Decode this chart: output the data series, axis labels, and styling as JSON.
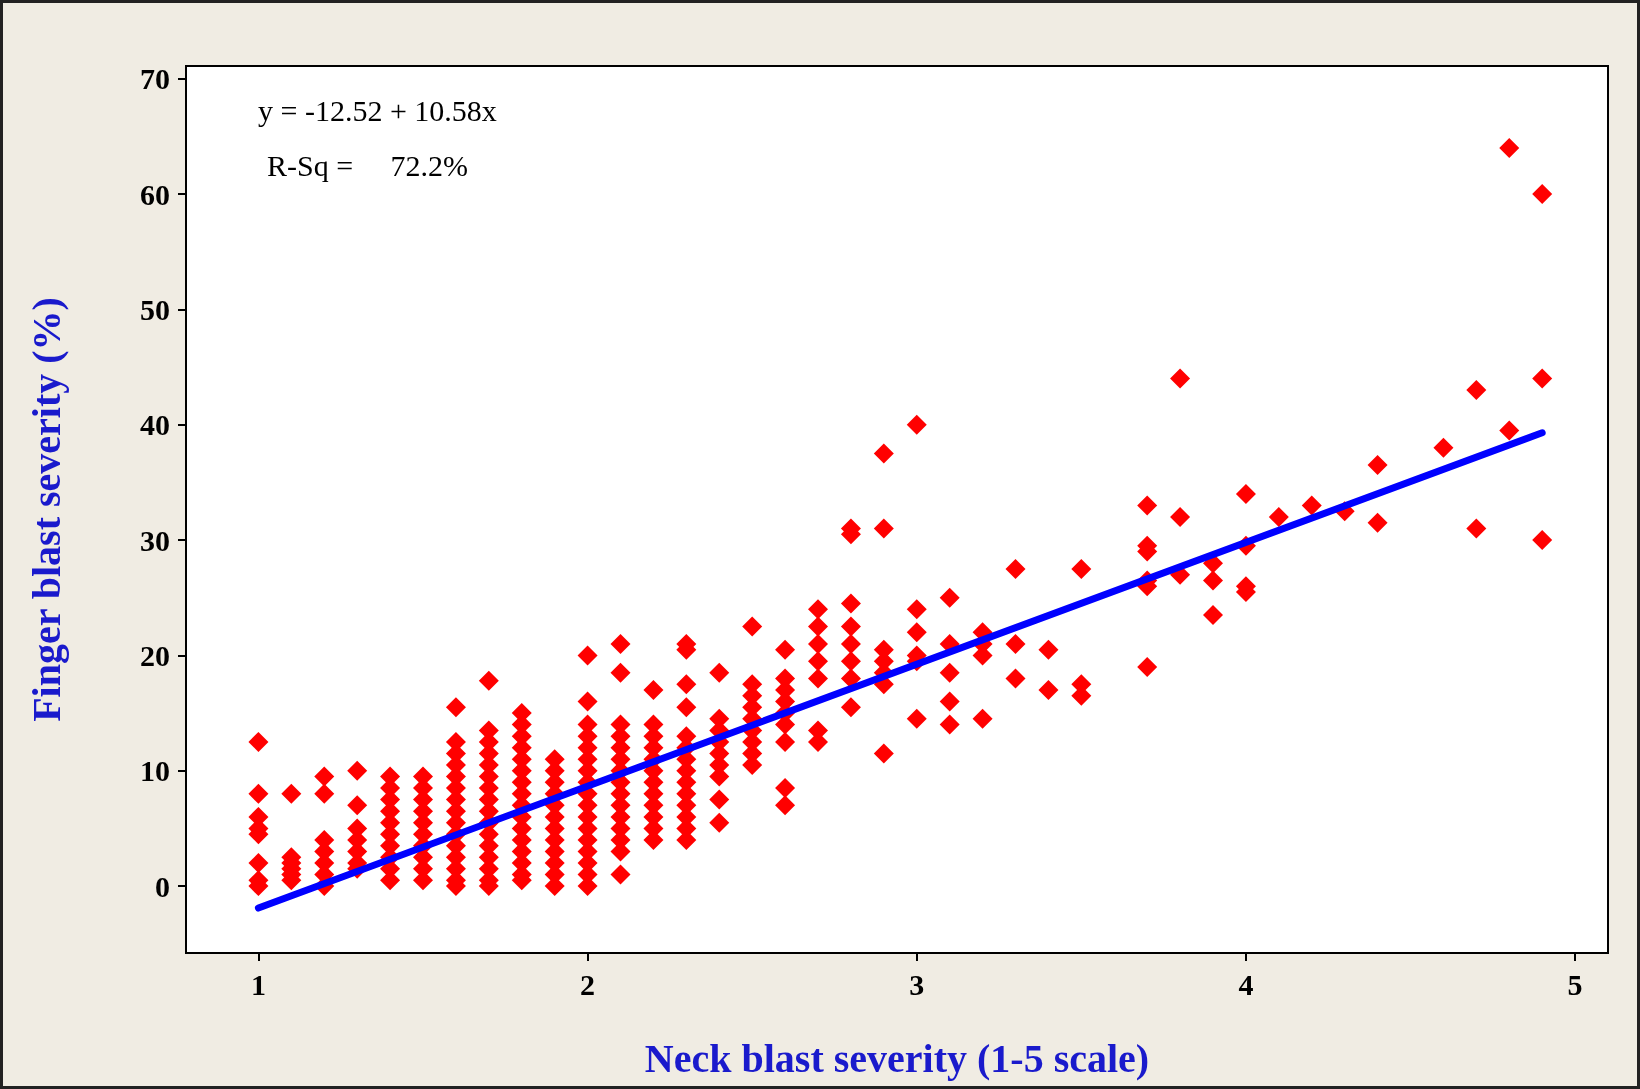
{
  "chart_data": {
    "type": "scatter",
    "xlabel": "Neck blast severity (1-5 scale)",
    "ylabel": "Finger blast severity (%)",
    "annotations": [
      "y = -12.52 + 10.58x",
      "R-Sq =     72.2%"
    ],
    "xlim": [
      0.78,
      5.1
    ],
    "xticks": [
      1,
      2,
      3,
      4,
      5
    ],
    "ylim": [
      -5.8,
      71.1
    ],
    "yticks": [
      0,
      10,
      20,
      30,
      40,
      50,
      60,
      70
    ],
    "marker": "diamond",
    "grid": false,
    "series": [
      {
        "color": "#ff0000",
        "x": [
          1,
          1,
          1,
          1,
          1,
          1,
          1,
          1,
          1.1,
          1.1,
          1.1,
          1.1,
          1.1,
          1.1,
          1.2,
          1.2,
          1.2,
          1.2,
          1.2,
          1.2,
          1.2,
          1.3,
          1.3,
          1.3,
          1.3,
          1.3,
          1.3,
          1.3,
          1.4,
          1.4,
          1.4,
          1.4,
          1.4,
          1.4,
          1.4,
          1.4,
          1.4,
          1.4,
          1.5,
          1.5,
          1.5,
          1.5,
          1.5,
          1.5,
          1.5,
          1.5,
          1.5,
          1.5,
          1.6,
          1.6,
          1.6,
          1.6,
          1.6,
          1.6,
          1.6,
          1.6,
          1.6,
          1.6,
          1.6,
          1.6,
          1.6,
          1.6,
          1.6,
          1.7,
          1.7,
          1.7,
          1.7,
          1.7,
          1.7,
          1.7,
          1.7,
          1.7,
          1.7,
          1.7,
          1.7,
          1.7,
          1.7,
          1.7,
          1.7,
          1.8,
          1.8,
          1.8,
          1.8,
          1.8,
          1.8,
          1.8,
          1.8,
          1.8,
          1.8,
          1.8,
          1.8,
          1.8,
          1.8,
          1.8,
          1.8,
          1.9,
          1.9,
          1.9,
          1.9,
          1.9,
          1.9,
          1.9,
          1.9,
          1.9,
          1.9,
          1.9,
          1.9,
          2,
          2,
          2,
          2,
          2,
          2,
          2,
          2,
          2,
          2,
          2,
          2,
          2,
          2,
          2,
          2,
          2,
          2.1,
          2.1,
          2.1,
          2.1,
          2.1,
          2.1,
          2.1,
          2.1,
          2.1,
          2.1,
          2.1,
          2.1,
          2.1,
          2.1,
          2.1,
          2.2,
          2.2,
          2.2,
          2.2,
          2.2,
          2.2,
          2.2,
          2.2,
          2.2,
          2.2,
          2.2,
          2.2,
          2.3,
          2.3,
          2.3,
          2.3,
          2.3,
          2.3,
          2.3,
          2.3,
          2.3,
          2.3,
          2.3,
          2.3,
          2.3,
          2.3,
          2.4,
          2.4,
          2.4,
          2.4,
          2.4,
          2.4,
          2.4,
          2.4,
          2.4,
          2.5,
          2.5,
          2.5,
          2.5,
          2.5,
          2.5,
          2.5,
          2.5,
          2.5,
          2.6,
          2.6,
          2.6,
          2.6,
          2.6,
          2.6,
          2.6,
          2.6,
          2.6,
          2.7,
          2.7,
          2.7,
          2.7,
          2.7,
          2.7,
          2.7,
          2.8,
          2.8,
          2.8,
          2.8,
          2.8,
          2.8,
          2.8,
          2.8,
          2.9,
          2.9,
          2.9,
          2.9,
          2.9,
          2.9,
          2.9,
          3,
          3,
          3,
          3,
          3,
          3,
          3.1,
          3.1,
          3.1,
          3.1,
          3.1,
          3.2,
          3.2,
          3.2,
          3.2,
          3.3,
          3.3,
          3.3,
          3.4,
          3.4,
          3.5,
          3.5,
          3.5,
          3.7,
          3.7,
          3.7,
          3.7,
          3.7,
          3.7,
          3.8,
          3.8,
          3.8,
          3.9,
          3.9,
          3.9,
          4,
          4,
          4,
          4,
          4.1,
          4.2,
          4.3,
          4.4,
          4.4,
          4.6,
          4.7,
          4.7,
          4.8,
          4.8,
          4.9,
          4.9,
          4.9
        ],
        "values": [
          12.5,
          8,
          6,
          5,
          4.5,
          2,
          0.5,
          0,
          8,
          2.5,
          2,
          1.5,
          1,
          0.5,
          9.5,
          8,
          4,
          3,
          2,
          1,
          0,
          10,
          7,
          5,
          4,
          3,
          2,
          1.5,
          9.5,
          8.5,
          7.5,
          6.5,
          5.5,
          4.5,
          3.5,
          2.5,
          1.5,
          0.5,
          9.5,
          8.5,
          7.5,
          6.5,
          5.5,
          4.5,
          3.5,
          2.5,
          1.5,
          0.5,
          15.5,
          12.5,
          11.5,
          10.5,
          9.5,
          8.5,
          7.5,
          6.5,
          5.5,
          4.5,
          3.5,
          2.5,
          1.5,
          0.5,
          0,
          17.8,
          13.5,
          12.5,
          11.5,
          10.5,
          9.5,
          8.5,
          7.5,
          6.5,
          5.5,
          4.5,
          3.5,
          2.5,
          1.5,
          0.5,
          0,
          15,
          14,
          13,
          12,
          11,
          10,
          9,
          8,
          7,
          6,
          5,
          4,
          3,
          2,
          1,
          0.5,
          11,
          10,
          9,
          8,
          7,
          6,
          5,
          4,
          3,
          2,
          1,
          0,
          20,
          16,
          14,
          13,
          12,
          11,
          10,
          9,
          8,
          7,
          6,
          5,
          4,
          3,
          2,
          1,
          0,
          21,
          18.5,
          14,
          13,
          12,
          11,
          10,
          9,
          8,
          7,
          6,
          5,
          4,
          3,
          1,
          17,
          14,
          13,
          12,
          11,
          10,
          9,
          8,
          7,
          6,
          5,
          4,
          21,
          20.5,
          17.5,
          15.5,
          13,
          12,
          11,
          10,
          9,
          8,
          7,
          6,
          5,
          4,
          18.5,
          14.5,
          13.5,
          12.5,
          11.5,
          10.5,
          9.5,
          7.5,
          5.5,
          22.5,
          17.5,
          16.5,
          15.5,
          14.5,
          13.5,
          12.5,
          11.5,
          10.5,
          20.5,
          18,
          17,
          16,
          15,
          14,
          12.5,
          8.5,
          7,
          24,
          22.5,
          21,
          19.5,
          18,
          13.5,
          12.5,
          31,
          30.5,
          24.5,
          22.5,
          21,
          19.5,
          18,
          15.5,
          37.5,
          31,
          20.5,
          19.5,
          18.5,
          17.5,
          11.5,
          40,
          24,
          22,
          20,
          19.5,
          14.5,
          25,
          21,
          18.5,
          16,
          14,
          22,
          21,
          20,
          14.5,
          27.5,
          21,
          18,
          20.5,
          17,
          27.5,
          17.5,
          16.5,
          33,
          29.5,
          29,
          26.5,
          26,
          19,
          44,
          32,
          27,
          28,
          26.5,
          23.5,
          34,
          29.5,
          26,
          25.5,
          32,
          33,
          32.5,
          36.5,
          31.5,
          38,
          43,
          31,
          64,
          39.5,
          60,
          44,
          30
        ]
      },
      {
        "type": "line",
        "marker": "none",
        "color": "#0000ff",
        "x": [
          1,
          4.9
        ],
        "values": [
          -1.9,
          39.3
        ]
      }
    ]
  }
}
